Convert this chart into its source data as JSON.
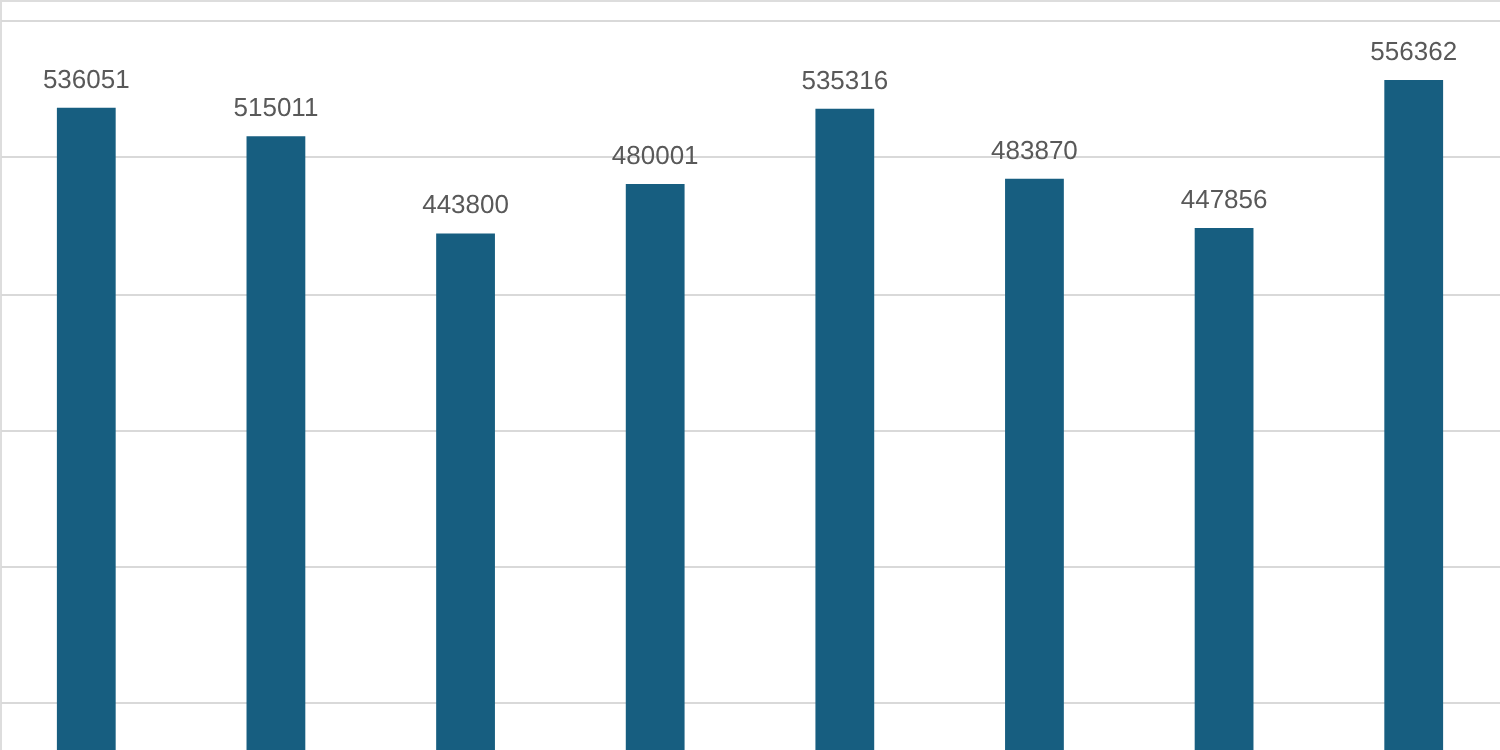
{
  "chart_data": {
    "type": "bar",
    "categories": [
      null,
      null,
      null,
      null,
      null,
      null,
      null,
      null
    ],
    "values": [
      536051,
      515011,
      443800,
      480001,
      535316,
      483870,
      447856,
      556362
    ],
    "color": "#175e80",
    "data_labels": true,
    "ylim": [
      65000,
      615000
    ],
    "yticks": [
      {
        "value": 100000,
        "label": null
      },
      {
        "value": 200000,
        "label": null
      },
      {
        "value": 300000,
        "label": null
      },
      {
        "value": 400000,
        "label": null
      },
      {
        "value": 500000,
        "label": null
      },
      {
        "value": 600000,
        "label": null
      }
    ],
    "tick_labels": false,
    "grid": "y"
  }
}
